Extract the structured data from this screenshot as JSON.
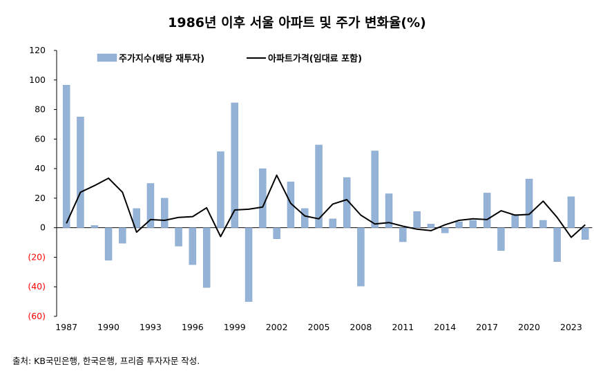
{
  "title": "1986년 이후 서울 아파트 및 주가 변화율(%)",
  "source": "출처: KB국민은행, 한국은행, 프리즘 투자자문 작성.",
  "colors": {
    "bar": "#95b3d7",
    "bar_edge": "#7a9cc4",
    "line": "#000000",
    "negative_label": "#ff0000"
  },
  "chart_data": {
    "type": "bar",
    "title": "1986년 이후 서울 아파트 및 주가 변화율(%)",
    "xlabel": "",
    "ylabel": "",
    "ylim": [
      -60,
      120
    ],
    "yticks": [
      -60,
      -40,
      -20,
      0,
      20,
      40,
      60,
      80,
      100,
      120
    ],
    "ytick_labels": [
      "(60)",
      "(40)",
      "(20)",
      "0",
      "20",
      "40",
      "60",
      "80",
      "100",
      "120"
    ],
    "x": [
      1987,
      1988,
      1989,
      1990,
      1991,
      1992,
      1993,
      1994,
      1995,
      1996,
      1997,
      1998,
      1999,
      2000,
      2001,
      2002,
      2003,
      2004,
      2005,
      2006,
      2007,
      2008,
      2009,
      2010,
      2011,
      2012,
      2013,
      2014,
      2015,
      2016,
      2017,
      2018,
      2019,
      2020,
      2021,
      2022,
      2023,
      2024
    ],
    "xtick_labels": [
      "1987",
      "1990",
      "1993",
      "1996",
      "1999",
      "2002",
      "2005",
      "2008",
      "2011",
      "2014",
      "2017",
      "2020",
      "2023"
    ],
    "grid": false,
    "legend": "top",
    "series": [
      {
        "name": "주가지수(배당 재투자)",
        "type": "bar",
        "values": [
          96.5,
          75.0,
          1.5,
          -22.0,
          -10.5,
          13.0,
          30.0,
          20.0,
          -12.5,
          -25.0,
          -40.5,
          51.5,
          84.5,
          -50.0,
          40.0,
          -7.5,
          31.0,
          13.0,
          56.0,
          6.0,
          34.0,
          -39.5,
          52.0,
          23.0,
          -9.5,
          11.0,
          2.5,
          -3.5,
          4.0,
          5.0,
          23.5,
          -15.5,
          9.0,
          33.0,
          5.0,
          -23.0,
          21.0,
          -8.0
        ]
      },
      {
        "name": "아파트가격(임대료 포함)",
        "type": "line",
        "values": [
          3.0,
          24.0,
          28.5,
          33.5,
          24.0,
          -3.0,
          5.5,
          5.0,
          7.0,
          7.5,
          13.5,
          -6.0,
          12.0,
          12.5,
          14.0,
          35.5,
          16.5,
          8.0,
          6.0,
          16.0,
          19.0,
          8.5,
          2.5,
          3.5,
          1.0,
          -1.0,
          -2.0,
          2.0,
          5.0,
          6.0,
          5.5,
          11.5,
          8.5,
          9.0,
          18.0,
          7.0,
          -6.5,
          2.0
        ]
      }
    ]
  }
}
